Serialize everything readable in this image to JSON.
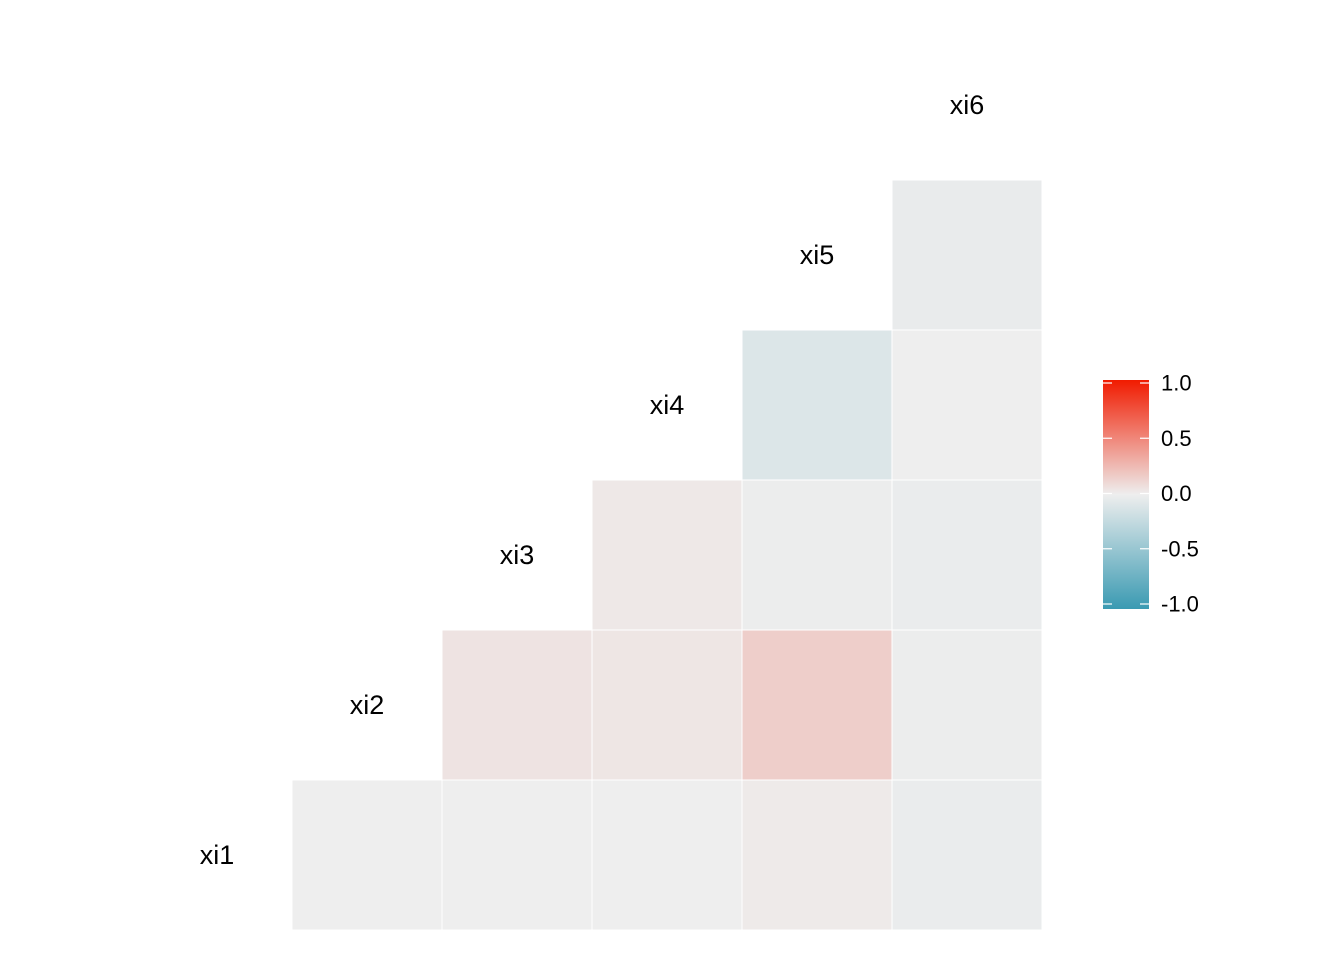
{
  "chart_data": {
    "type": "heatmap",
    "layout": "lower-triangle correlation matrix",
    "variables": [
      "xi1",
      "xi2",
      "xi3",
      "xi4",
      "xi5",
      "xi6"
    ],
    "cells": [
      {
        "row": "xi2",
        "col": "xi1",
        "value": 0.0
      },
      {
        "row": "xi3",
        "col": "xi1",
        "value": 0.0
      },
      {
        "row": "xi4",
        "col": "xi1",
        "value": 0.0
      },
      {
        "row": "xi5",
        "col": "xi1",
        "value": 0.02
      },
      {
        "row": "xi6",
        "col": "xi1",
        "value": -0.02
      },
      {
        "row": "xi3",
        "col": "xi2",
        "value": 0.05
      },
      {
        "row": "xi4",
        "col": "xi2",
        "value": 0.04
      },
      {
        "row": "xi5",
        "col": "xi2",
        "value": 0.15
      },
      {
        "row": "xi6",
        "col": "xi2",
        "value": -0.01
      },
      {
        "row": "xi4",
        "col": "xi3",
        "value": 0.03
      },
      {
        "row": "xi5",
        "col": "xi3",
        "value": -0.01
      },
      {
        "row": "xi6",
        "col": "xi3",
        "value": -0.02
      },
      {
        "row": "xi5",
        "col": "xi4",
        "value": -0.1
      },
      {
        "row": "xi6",
        "col": "xi4",
        "value": 0.0
      },
      {
        "row": "xi6",
        "col": "xi5",
        "value": -0.03
      }
    ],
    "color_scale": {
      "low": "#3A9AB2",
      "mid": "#EEEEEE",
      "high": "#F11B00",
      "limits": [
        -1,
        1
      ],
      "breaks": [
        1.0,
        0.5,
        0.0,
        -0.5,
        -1.0
      ],
      "break_labels": [
        "1.0",
        "0.5",
        "0.0",
        "-0.5",
        "-1.0"
      ]
    },
    "legend_placement": "right",
    "grid": false
  }
}
